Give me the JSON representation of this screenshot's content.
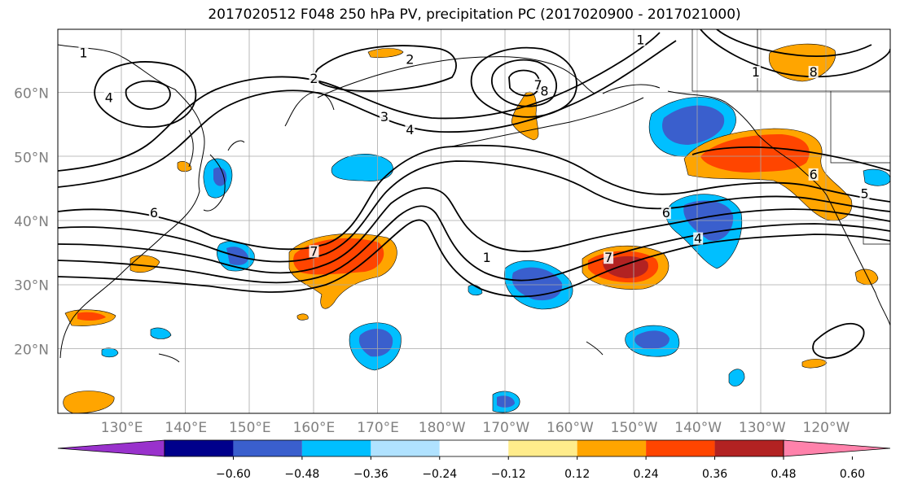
{
  "title": "2017020512 F048 250 hPa PV, precipitation PC (2017020900 - 2017021000)",
  "lat_labels": [
    {
      "text": "60°N",
      "lat": 60
    },
    {
      "text": "50°N",
      "lat": 50
    },
    {
      "text": "40°N",
      "lat": 40
    },
    {
      "text": "30°N",
      "lat": 30
    },
    {
      "text": "20°N",
      "lat": 20
    }
  ],
  "lon_labels": [
    {
      "text": "130°E",
      "lon": 130
    },
    {
      "text": "140°E",
      "lon": 140
    },
    {
      "text": "150°E",
      "lon": 150
    },
    {
      "text": "160°E",
      "lon": 160
    },
    {
      "text": "170°E",
      "lon": 170
    },
    {
      "text": "180°W",
      "lon": 180
    },
    {
      "text": "170°W",
      "lon": 190
    },
    {
      "text": "160°W",
      "lon": 200
    },
    {
      "text": "150°W",
      "lon": 210
    },
    {
      "text": "140°W",
      "lon": 220
    },
    {
      "text": "130°W",
      "lon": 230
    },
    {
      "text": "120°W",
      "lon": 240
    }
  ],
  "colorbar": {
    "colors": [
      "#9932cc",
      "#00008b",
      "#3a5fcd",
      "#00bfff",
      "#b0e2ff",
      "#ffffff",
      "#ffec8b",
      "#ffa500",
      "#ff4500",
      "#b22222",
      "#ff82ab"
    ],
    "tick_labels": [
      "−0.60",
      "−0.48",
      "−0.36",
      "−0.24",
      "−0.12",
      "0.12",
      "0.24",
      "0.36",
      "0.48",
      "0.60"
    ]
  },
  "contour_labels": [
    {
      "text": "1",
      "lon": 124,
      "lat": 66
    },
    {
      "text": "4",
      "lon": 128,
      "lat": 59
    },
    {
      "text": "2",
      "lon": 175,
      "lat": 65
    },
    {
      "text": "2",
      "lon": 160,
      "lat": 62
    },
    {
      "text": "3",
      "lon": 171,
      "lat": 56
    },
    {
      "text": "4",
      "lon": 175,
      "lat": 54
    },
    {
      "text": "7",
      "lon": 195,
      "lat": 61
    },
    {
      "text": "8",
      "lon": 196,
      "lat": 60
    },
    {
      "text": "1",
      "lon": 211,
      "lat": 68
    },
    {
      "text": "1",
      "lon": 229,
      "lat": 63
    },
    {
      "text": "8",
      "lon": 238,
      "lat": 63
    },
    {
      "text": "6",
      "lon": 135,
      "lat": 41
    },
    {
      "text": "7",
      "lon": 160,
      "lat": 35
    },
    {
      "text": "1",
      "lon": 187,
      "lat": 34
    },
    {
      "text": "7",
      "lon": 206,
      "lat": 34
    },
    {
      "text": "6",
      "lon": 215,
      "lat": 41
    },
    {
      "text": "4",
      "lon": 220,
      "lat": 37
    },
    {
      "text": "6",
      "lon": 238,
      "lat": 47
    },
    {
      "text": "5",
      "lon": 246,
      "lat": 44
    }
  ]
}
